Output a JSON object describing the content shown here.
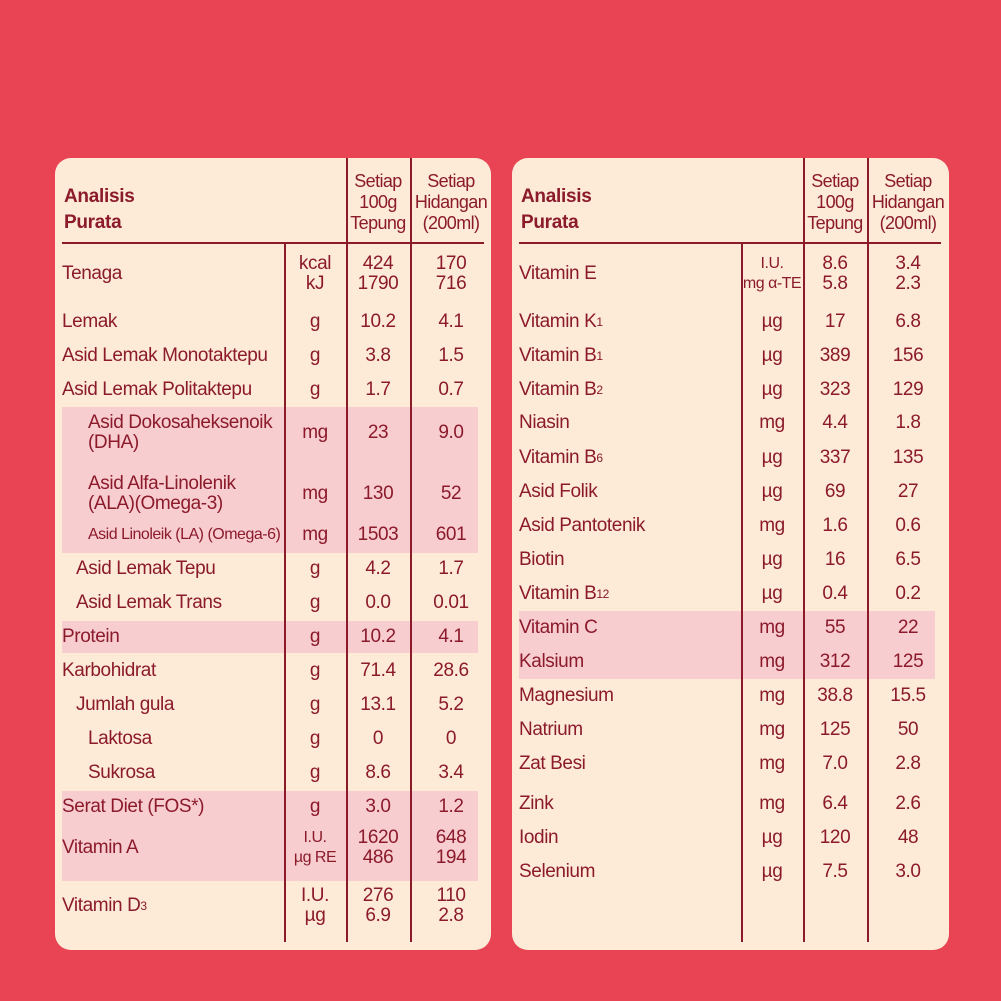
{
  "left": {
    "header": {
      "title_line1": "Analisis",
      "title_line2": "Purata",
      "col_per100": [
        "Setiap",
        "100g",
        "Tepung"
      ],
      "col_serving": [
        "Setiap",
        "Hidangan",
        "(200ml)"
      ]
    },
    "rows": [
      {
        "name": "Tenaga",
        "unit": [
          "kcal",
          "kJ"
        ],
        "per100": [
          "424",
          "1790"
        ],
        "serving": [
          "170",
          "716"
        ]
      },
      {
        "name": "Lemak",
        "unit": [
          "g"
        ],
        "per100": [
          "10.2"
        ],
        "serving": [
          "4.1"
        ]
      },
      {
        "name": "Asid Lemak Monotaktepu",
        "unit": [
          "g"
        ],
        "per100": [
          "3.8"
        ],
        "serving": [
          "1.5"
        ]
      },
      {
        "name": "Asid Lemak Politaktepu",
        "unit": [
          "g"
        ],
        "per100": [
          "1.7"
        ],
        "serving": [
          "0.7"
        ]
      },
      {
        "name": "Asid Dokosaheksenoik (DHA)",
        "unit": [
          "mg"
        ],
        "per100": [
          "23"
        ],
        "serving": [
          "9.0"
        ]
      },
      {
        "name": "Asid Alfa-Linolenik (ALA)(Omega-3)",
        "unit": [
          "mg"
        ],
        "per100": [
          "130"
        ],
        "serving": [
          "52"
        ]
      },
      {
        "name": "Asid Linoleik (LA) (Omega-6)",
        "unit": [
          "mg"
        ],
        "per100": [
          "1503"
        ],
        "serving": [
          "601"
        ]
      },
      {
        "name": "Asid Lemak Tepu",
        "unit": [
          "g"
        ],
        "per100": [
          "4.2"
        ],
        "serving": [
          "1.7"
        ]
      },
      {
        "name": "Asid Lemak Trans",
        "unit": [
          "g"
        ],
        "per100": [
          "0.0"
        ],
        "serving": [
          "0.01"
        ]
      },
      {
        "name": "Protein",
        "unit": [
          "g"
        ],
        "per100": [
          "10.2"
        ],
        "serving": [
          "4.1"
        ]
      },
      {
        "name": "Karbohidrat",
        "unit": [
          "g"
        ],
        "per100": [
          "71.4"
        ],
        "serving": [
          "28.6"
        ]
      },
      {
        "name": "Jumlah gula",
        "unit": [
          "g"
        ],
        "per100": [
          "13.1"
        ],
        "serving": [
          "5.2"
        ]
      },
      {
        "name": "Laktosa",
        "unit": [
          "g"
        ],
        "per100": [
          "0"
        ],
        "serving": [
          "0"
        ]
      },
      {
        "name": "Sukrosa",
        "unit": [
          "g"
        ],
        "per100": [
          "8.6"
        ],
        "serving": [
          "3.4"
        ]
      },
      {
        "name": "Serat Diet (FOS*)",
        "unit": [
          "g"
        ],
        "per100": [
          "3.0"
        ],
        "serving": [
          "1.2"
        ]
      },
      {
        "name": "Vitamin A",
        "unit": [
          "I.U.",
          "µg RE"
        ],
        "per100": [
          "1620",
          "486"
        ],
        "serving": [
          "648",
          "194"
        ]
      },
      {
        "name": "Vitamin D",
        "name_sub": "3",
        "unit": [
          "I.U.",
          "µg"
        ],
        "per100": [
          "276",
          "6.9"
        ],
        "serving": [
          "110",
          "2.8"
        ]
      }
    ]
  },
  "right": {
    "header": {
      "title_line1": "Analisis",
      "title_line2": "Purata",
      "col_per100": [
        "Setiap",
        "100g",
        "Tepung"
      ],
      "col_serving": [
        "Setiap",
        "Hidangan",
        "(200ml)"
      ]
    },
    "rows": [
      {
        "name": "Vitamin E",
        "unit": [
          "I.U.",
          "mg α-TE"
        ],
        "per100": [
          "8.6",
          "5.8"
        ],
        "serving": [
          "3.4",
          "2.3"
        ]
      },
      {
        "name": "Vitamin K",
        "name_sub": "1",
        "unit": [
          "µg"
        ],
        "per100": [
          "17"
        ],
        "serving": [
          "6.8"
        ]
      },
      {
        "name": "Vitamin B",
        "name_sub": "1",
        "unit": [
          "µg"
        ],
        "per100": [
          "389"
        ],
        "serving": [
          "156"
        ]
      },
      {
        "name": "Vitamin B",
        "name_sub": "2",
        "unit": [
          "µg"
        ],
        "per100": [
          "323"
        ],
        "serving": [
          "129"
        ]
      },
      {
        "name": "Niasin",
        "unit": [
          "mg"
        ],
        "per100": [
          "4.4"
        ],
        "serving": [
          "1.8"
        ]
      },
      {
        "name": "Vitamin B",
        "name_sub": "6",
        "unit": [
          "µg"
        ],
        "per100": [
          "337"
        ],
        "serving": [
          "135"
        ]
      },
      {
        "name": "Asid Folik",
        "unit": [
          "µg"
        ],
        "per100": [
          "69"
        ],
        "serving": [
          "27"
        ]
      },
      {
        "name": "Asid Pantotenik",
        "unit": [
          "mg"
        ],
        "per100": [
          "1.6"
        ],
        "serving": [
          "0.6"
        ]
      },
      {
        "name": "Biotin",
        "unit": [
          "µg"
        ],
        "per100": [
          "16"
        ],
        "serving": [
          "6.5"
        ]
      },
      {
        "name": "Vitamin B",
        "name_sub": "12",
        "unit": [
          "µg"
        ],
        "per100": [
          "0.4"
        ],
        "serving": [
          "0.2"
        ]
      },
      {
        "name": "Vitamin C",
        "unit": [
          "mg"
        ],
        "per100": [
          "55"
        ],
        "serving": [
          "22"
        ]
      },
      {
        "name": "Kalsium",
        "unit": [
          "mg"
        ],
        "per100": [
          "312"
        ],
        "serving": [
          "125"
        ]
      },
      {
        "name": "Magnesium",
        "unit": [
          "mg"
        ],
        "per100": [
          "38.8"
        ],
        "serving": [
          "15.5"
        ]
      },
      {
        "name": "Natrium",
        "unit": [
          "mg"
        ],
        "per100": [
          "125"
        ],
        "serving": [
          "50"
        ]
      },
      {
        "name": "Zat Besi",
        "unit": [
          "mg"
        ],
        "per100": [
          "7.0"
        ],
        "serving": [
          "2.8"
        ]
      },
      {
        "name": "Zink",
        "unit": [
          "mg"
        ],
        "per100": [
          "6.4"
        ],
        "serving": [
          "2.6"
        ]
      },
      {
        "name": "Iodin",
        "unit": [
          "µg"
        ],
        "per100": [
          "120"
        ],
        "serving": [
          "48"
        ]
      },
      {
        "name": "Selenium",
        "unit": [
          "µg"
        ],
        "per100": [
          "7.5"
        ],
        "serving": [
          "3.0"
        ]
      }
    ]
  }
}
